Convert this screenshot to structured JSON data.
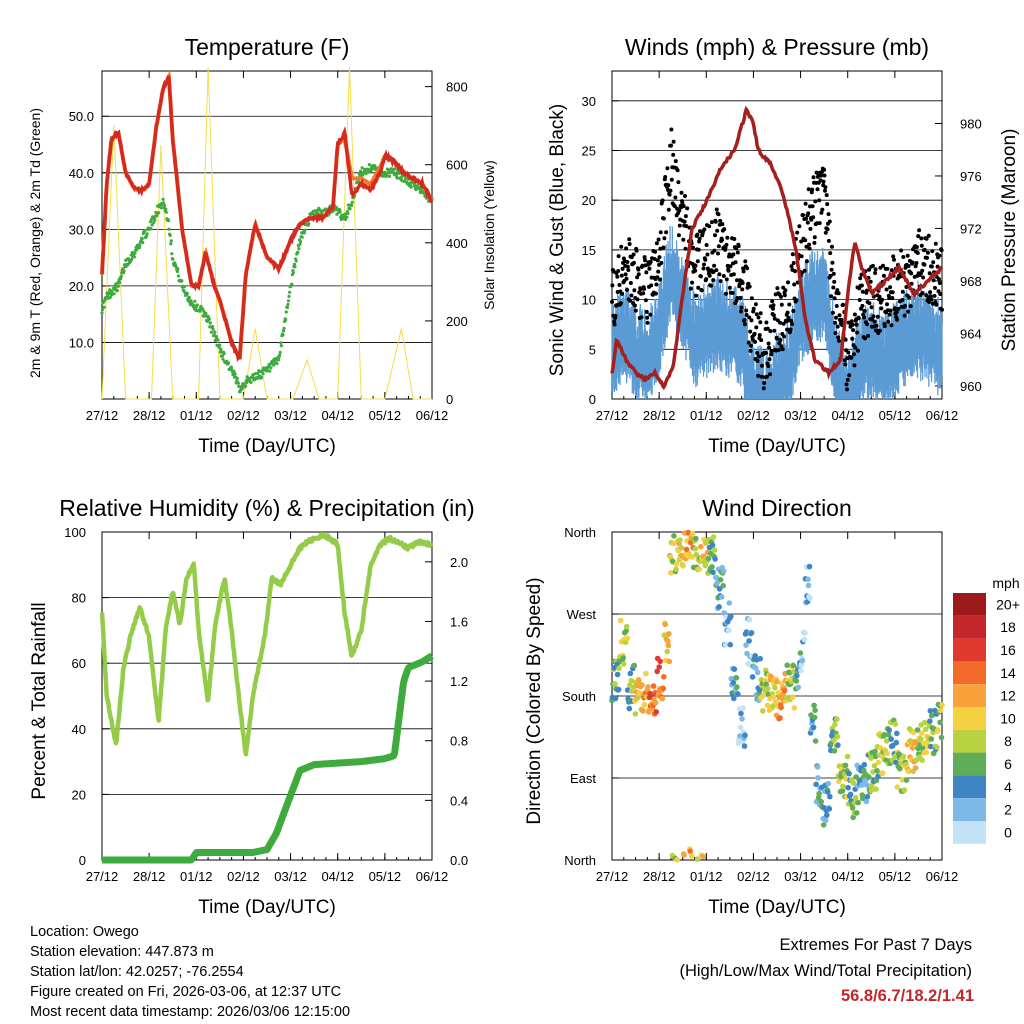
{
  "x_ticks": [
    "27/12",
    "28/12",
    "01/12",
    "02/12",
    "03/12",
    "04/12",
    "05/12",
    "06/12"
  ],
  "x_label": "Time (Day/UTC)",
  "colors": {
    "temp_red": "#d42a1f",
    "temp_orange": "#f07b2a",
    "dewpoint_green": "#3fab3f",
    "insolation_yellow": "#f5dc4b",
    "wind_blue": "#5b9bd5",
    "gust_black": "#000000",
    "pressure_maroon": "#a3201f",
    "rh_lightgreen": "#94cc4a",
    "precip_green": "#3fab3f",
    "extremes_red": "#c3272b"
  },
  "chart_data": [
    {
      "id": "temperature",
      "type": "line",
      "title": "Temperature (F)",
      "xlabel": "Time (Day/UTC)",
      "ylabel": "2m & 9m T (Red, Orange) & 2m Td (Green)",
      "ylabel_right": "Solar Insolation (Yellow)",
      "ylim": [
        0,
        58
      ],
      "ylim_right": [
        0,
        840
      ],
      "yticks": [
        10,
        20,
        30,
        40,
        50
      ],
      "ytick_labels": [
        "10.0",
        "20.0",
        "30.0",
        "40.0",
        "50.0"
      ],
      "yticks_right": [
        0,
        200,
        400,
        600,
        800
      ],
      "ytick_labels_right": [
        "0",
        "200",
        "400",
        "600",
        "800"
      ],
      "x": [
        0,
        0.1,
        0.2,
        0.35,
        0.5,
        0.7,
        0.9,
        1.0,
        1.15,
        1.3,
        1.42,
        1.5,
        1.7,
        1.9,
        2.05,
        2.2,
        2.35,
        2.55,
        2.75,
        2.92,
        3.05,
        3.25,
        3.5,
        3.75,
        4.0,
        4.2,
        4.4,
        4.55,
        4.65,
        4.8,
        4.9,
        5.0,
        5.15,
        5.3,
        5.5,
        5.7,
        5.9,
        6.0,
        6.2,
        6.4,
        6.6,
        6.8,
        7.0
      ],
      "series": [
        {
          "name": "2m T",
          "values": [
            22,
            38,
            46,
            47,
            40,
            37,
            37,
            38,
            48,
            55,
            57,
            46,
            30,
            20,
            20,
            26,
            21,
            16,
            10,
            7,
            22,
            31,
            25,
            23,
            28,
            31,
            32,
            32,
            32,
            33,
            34,
            45,
            47,
            36,
            38,
            37,
            40,
            43,
            42,
            40,
            39,
            38,
            35
          ]
        },
        {
          "name": "9m T",
          "values": [
            22,
            38,
            46,
            47,
            40,
            37,
            37,
            38,
            48,
            55,
            57,
            46,
            30,
            20,
            20,
            26,
            21,
            16,
            10,
            7,
            22,
            31,
            25,
            23,
            28,
            31,
            32,
            32,
            32,
            33,
            34,
            45,
            46,
            39,
            39,
            38,
            41,
            43,
            42,
            40,
            39,
            38,
            35
          ]
        },
        {
          "name": "2m Td",
          "values": [
            16,
            18,
            19,
            20,
            24,
            26,
            29,
            30,
            33,
            35,
            31,
            25,
            20,
            17,
            16,
            15,
            12,
            8,
            5,
            2,
            3,
            4,
            5,
            7,
            20,
            28,
            32,
            33,
            33,
            33,
            34,
            33,
            32,
            35,
            40,
            41,
            40,
            40,
            40,
            39,
            38,
            37,
            35
          ]
        }
      ],
      "insolation": [
        [
          0,
          0
        ],
        [
          0.25,
          700
        ],
        [
          0.5,
          0
        ],
        [
          1.05,
          0
        ],
        [
          1.25,
          650
        ],
        [
          1.5,
          0
        ],
        [
          2.05,
          0
        ],
        [
          2.25,
          850
        ],
        [
          2.5,
          0
        ],
        [
          3.0,
          0
        ],
        [
          3.25,
          180
        ],
        [
          3.5,
          0
        ],
        [
          4.05,
          0
        ],
        [
          4.35,
          100
        ],
        [
          4.6,
          0
        ],
        [
          5.0,
          0
        ],
        [
          5.25,
          850
        ],
        [
          5.5,
          0
        ],
        [
          6.0,
          0
        ],
        [
          6.35,
          180
        ],
        [
          6.6,
          0
        ],
        [
          7.0,
          0
        ]
      ]
    },
    {
      "id": "winds_pressure",
      "type": "scatter",
      "title": "Winds (mph) & Pressure (mb)",
      "xlabel": "Time (Day/UTC)",
      "ylabel": "Sonic Wind & Gust (Blue, Black)",
      "ylabel_right": "Station Pressure (Maroon)",
      "ylim": [
        0,
        33
      ],
      "ylim_right": [
        959,
        984
      ],
      "yticks": [
        0,
        5,
        10,
        15,
        20,
        25,
        30
      ],
      "yticks_right": [
        960,
        964,
        968,
        972,
        976,
        980
      ],
      "wind_x": [
        0,
        0.25,
        0.5,
        0.75,
        1.0,
        1.25,
        1.5,
        1.75,
        2.0,
        2.25,
        2.5,
        2.75,
        3.0,
        3.25,
        3.5,
        3.75,
        4.0,
        4.25,
        4.5,
        4.75,
        5.0,
        5.25,
        5.5,
        5.75,
        6.0,
        6.25,
        6.5,
        6.75,
        7.0
      ],
      "wind": [
        6,
        8,
        6,
        5,
        8,
        14,
        11,
        7,
        8,
        9,
        8,
        7,
        2,
        1,
        3,
        4,
        9,
        11,
        12,
        4,
        1,
        5,
        6,
        5,
        6,
        7,
        8,
        7,
        6
      ],
      "gust": [
        10,
        14,
        12,
        11,
        14,
        24,
        18,
        13,
        14,
        16,
        13,
        12,
        7,
        4,
        8,
        9,
        15,
        19,
        20,
        9,
        4,
        9,
        10,
        10,
        11,
        12,
        14,
        13,
        12
      ],
      "pressure_x": [
        0,
        0.1,
        0.3,
        0.5,
        0.7,
        0.9,
        1.1,
        1.3,
        1.5,
        1.7,
        2.0,
        2.3,
        2.6,
        2.85,
        3.0,
        3.1,
        3.2,
        3.35,
        3.6,
        3.9,
        4.1,
        4.3,
        4.6,
        4.85,
        5.0,
        5.15,
        5.3,
        5.5,
        5.8,
        6.1,
        6.4,
        6.7,
        7.0
      ],
      "pressure": [
        961,
        963.5,
        962,
        961,
        960.5,
        961,
        960,
        961.5,
        967,
        972,
        974,
        976.5,
        978,
        981,
        980,
        978,
        977.5,
        977,
        975,
        970.5,
        965,
        962,
        961,
        962,
        967,
        971,
        969,
        967,
        968,
        969,
        967,
        968,
        969
      ]
    },
    {
      "id": "humidity_precip",
      "type": "line",
      "title": "Relative Humidity (%) & Precipitation (in)",
      "xlabel": "Time (Day/UTC)",
      "ylabel": "Percent & Total Rainfall",
      "ylim": [
        0,
        100
      ],
      "ylim_right": [
        0,
        2.2
      ],
      "yticks": [
        0,
        20,
        40,
        60,
        80,
        100
      ],
      "yticks_right": [
        0,
        0.4,
        0.8,
        1.2,
        1.6,
        2.0
      ],
      "ytick_labels_right": [
        "0.0",
        "0.4",
        "0.8",
        "1.2",
        "1.6",
        "2.0"
      ],
      "rh_x": [
        0,
        0.1,
        0.3,
        0.45,
        0.6,
        0.8,
        1.0,
        1.2,
        1.35,
        1.5,
        1.65,
        1.8,
        1.95,
        2.05,
        2.25,
        2.4,
        2.6,
        2.75,
        2.9,
        3.05,
        3.2,
        3.45,
        3.6,
        3.8,
        4.0,
        4.2,
        4.35,
        4.5,
        4.7,
        4.85,
        5.0,
        5.15,
        5.3,
        5.5,
        5.7,
        5.9,
        6.1,
        6.3,
        6.5,
        6.7,
        7.0
      ],
      "rh": [
        76,
        50,
        35,
        58,
        68,
        77,
        68,
        42,
        70,
        82,
        72,
        86,
        90,
        70,
        48,
        72,
        86,
        70,
        50,
        32,
        50,
        68,
        86,
        84,
        90,
        95,
        97,
        98,
        99,
        98,
        96,
        75,
        62,
        70,
        90,
        96,
        98,
        97,
        95,
        97,
        96
      ],
      "precip_x": [
        0,
        1.9,
        2.0,
        2.5,
        3.0,
        3.2,
        3.5,
        3.7,
        3.9,
        4.2,
        4.5,
        5.0,
        5.5,
        6.0,
        6.2,
        6.4,
        6.5,
        6.8,
        7.0
      ],
      "precip": [
        0,
        0,
        0.05,
        0.05,
        0.05,
        0.05,
        0.07,
        0.18,
        0.35,
        0.6,
        0.64,
        0.65,
        0.66,
        0.68,
        0.7,
        1.2,
        1.29,
        1.33,
        1.37
      ]
    },
    {
      "id": "wind_direction",
      "type": "scatter",
      "title": "Wind Direction",
      "xlabel": "Time (Day/UTC)",
      "ylabel": "Direction (Colored By Speed)",
      "ylim": [
        0,
        360
      ],
      "ytick_labels": [
        "North",
        "West",
        "South",
        "East",
        "North"
      ],
      "ytick_values": [
        360,
        270,
        180,
        90,
        0
      ],
      "legend_title": "mph",
      "legend_labels": [
        "20+",
        "18",
        "16",
        "14",
        "12",
        "10",
        "8",
        "6",
        "4",
        "2",
        "0"
      ],
      "legend_colors": [
        "#9c1a1b",
        "#c3272b",
        "#e03a2f",
        "#f26b2a",
        "#faa23a",
        "#f5d043",
        "#b8d240",
        "#5fae57",
        "#3d85c4",
        "#7cb9e6",
        "#c3e2f6"
      ],
      "points": [
        [
          0.1,
          200,
          6
        ],
        [
          0.25,
          240,
          8
        ],
        [
          0.4,
          190,
          6
        ],
        [
          0.55,
          185,
          10
        ],
        [
          0.7,
          180,
          12
        ],
        [
          0.85,
          185,
          14
        ],
        [
          1.05,
          200,
          14
        ],
        [
          1.15,
          240,
          10
        ],
        [
          1.3,
          340,
          8
        ],
        [
          1.5,
          345,
          10
        ],
        [
          1.65,
          350,
          12
        ],
        [
          1.8,
          340,
          8
        ],
        [
          1.95,
          345,
          10
        ],
        [
          2.1,
          330,
          6
        ],
        [
          2.3,
          300,
          4
        ],
        [
          2.45,
          260,
          2
        ],
        [
          2.6,
          200,
          4
        ],
        [
          2.75,
          150,
          2
        ],
        [
          2.9,
          240,
          2
        ],
        [
          3.05,
          200,
          4
        ],
        [
          3.25,
          185,
          8
        ],
        [
          3.45,
          180,
          10
        ],
        [
          3.6,
          180,
          12
        ],
        [
          3.8,
          190,
          8
        ],
        [
          3.95,
          210,
          4
        ],
        [
          4.05,
          230,
          2
        ],
        [
          4.15,
          300,
          2
        ],
        [
          4.25,
          150,
          4
        ],
        [
          4.4,
          80,
          4
        ],
        [
          4.55,
          60,
          4
        ],
        [
          4.7,
          140,
          6
        ],
        [
          4.9,
          90,
          8
        ],
        [
          5.1,
          70,
          6
        ],
        [
          5.3,
          80,
          4
        ],
        [
          5.55,
          100,
          6
        ],
        [
          5.75,
          120,
          8
        ],
        [
          5.95,
          130,
          6
        ],
        [
          6.15,
          100,
          8
        ],
        [
          6.35,
          120,
          10
        ],
        [
          6.6,
          130,
          8
        ],
        [
          6.85,
          140,
          6
        ],
        [
          6.95,
          150,
          8
        ]
      ]
    }
  ],
  "info": {
    "location": "Location: Owego",
    "elevation": "Station elevation: 447.873 m",
    "latlon": "Station lat/lon: 42.0257; -76.2554",
    "created": "Figure created on Fri, 2026-03-06, at 12:37 UTC",
    "recent": "Most recent data timestamp: 2026/03/06 12:15:00"
  },
  "extremes": {
    "line1": "Extremes For Past 7 Days",
    "line2": "(High/Low/Max Wind/Total Precipitation)",
    "values": "56.8/6.7/18.2/1.41"
  }
}
